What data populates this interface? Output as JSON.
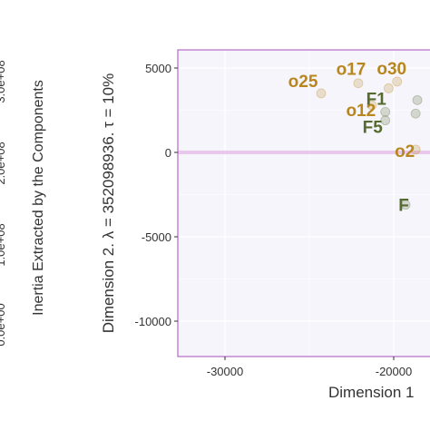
{
  "colors": {
    "panel_bg": "#f7f5fc",
    "panel_border": "#b56cc6",
    "zero_line": "#e9c8ee",
    "observation": "#b8861e",
    "factor": "#556b2f",
    "grid": "#ffffff"
  },
  "side_plot": {
    "ylabel": "Inertia Extracted by the Components",
    "tick_labels": [
      "0.0e+00",
      "1.0e+08",
      "2.0e+08",
      "3.0e+08"
    ]
  },
  "chart_data": {
    "type": "scatter",
    "xlabel": "Dimension 1",
    "ylabel": "Dimension 2.  λ = 352098936.  τ = 10%",
    "x_visible_range": [
      -33000,
      -18500
    ],
    "ylim": [
      -12000,
      6000
    ],
    "x_ticks": [
      -30000,
      -20000
    ],
    "x_tick_labels": [
      "-30000",
      "-20000"
    ],
    "y_ticks": [
      5000,
      0,
      -5000,
      -10000
    ],
    "y_tick_labels": [
      "5000",
      "0",
      "-5000",
      "-10000"
    ],
    "zero_line_y": 0,
    "grid": true,
    "points": [
      {
        "label": "o25",
        "x": -24300,
        "y": 3500,
        "group": "observation"
      },
      {
        "label": "o17",
        "x": -22100,
        "y": 4100,
        "group": "observation"
      },
      {
        "label": "o12",
        "x": -21300,
        "y": 2800,
        "group": "observation"
      },
      {
        "label": "o30",
        "x": -19800,
        "y": 4200,
        "group": "observation"
      },
      {
        "label": "o2",
        "x": -18700,
        "y": 170,
        "group": "observation"
      },
      {
        "label": "F1",
        "x": -20500,
        "y": 2400,
        "group": "factor"
      },
      {
        "label": "F5",
        "x": -20500,
        "y": 1900,
        "group": "factor"
      },
      {
        "label": "F",
        "x": -19300,
        "y": -3100,
        "group": "factor"
      }
    ],
    "unlabeled_points": [
      {
        "x": -20300,
        "y": 3800,
        "group": "observation"
      },
      {
        "x": -18700,
        "y": 2300,
        "group": "factor"
      },
      {
        "x": -18600,
        "y": 3100,
        "group": "factor"
      }
    ]
  }
}
